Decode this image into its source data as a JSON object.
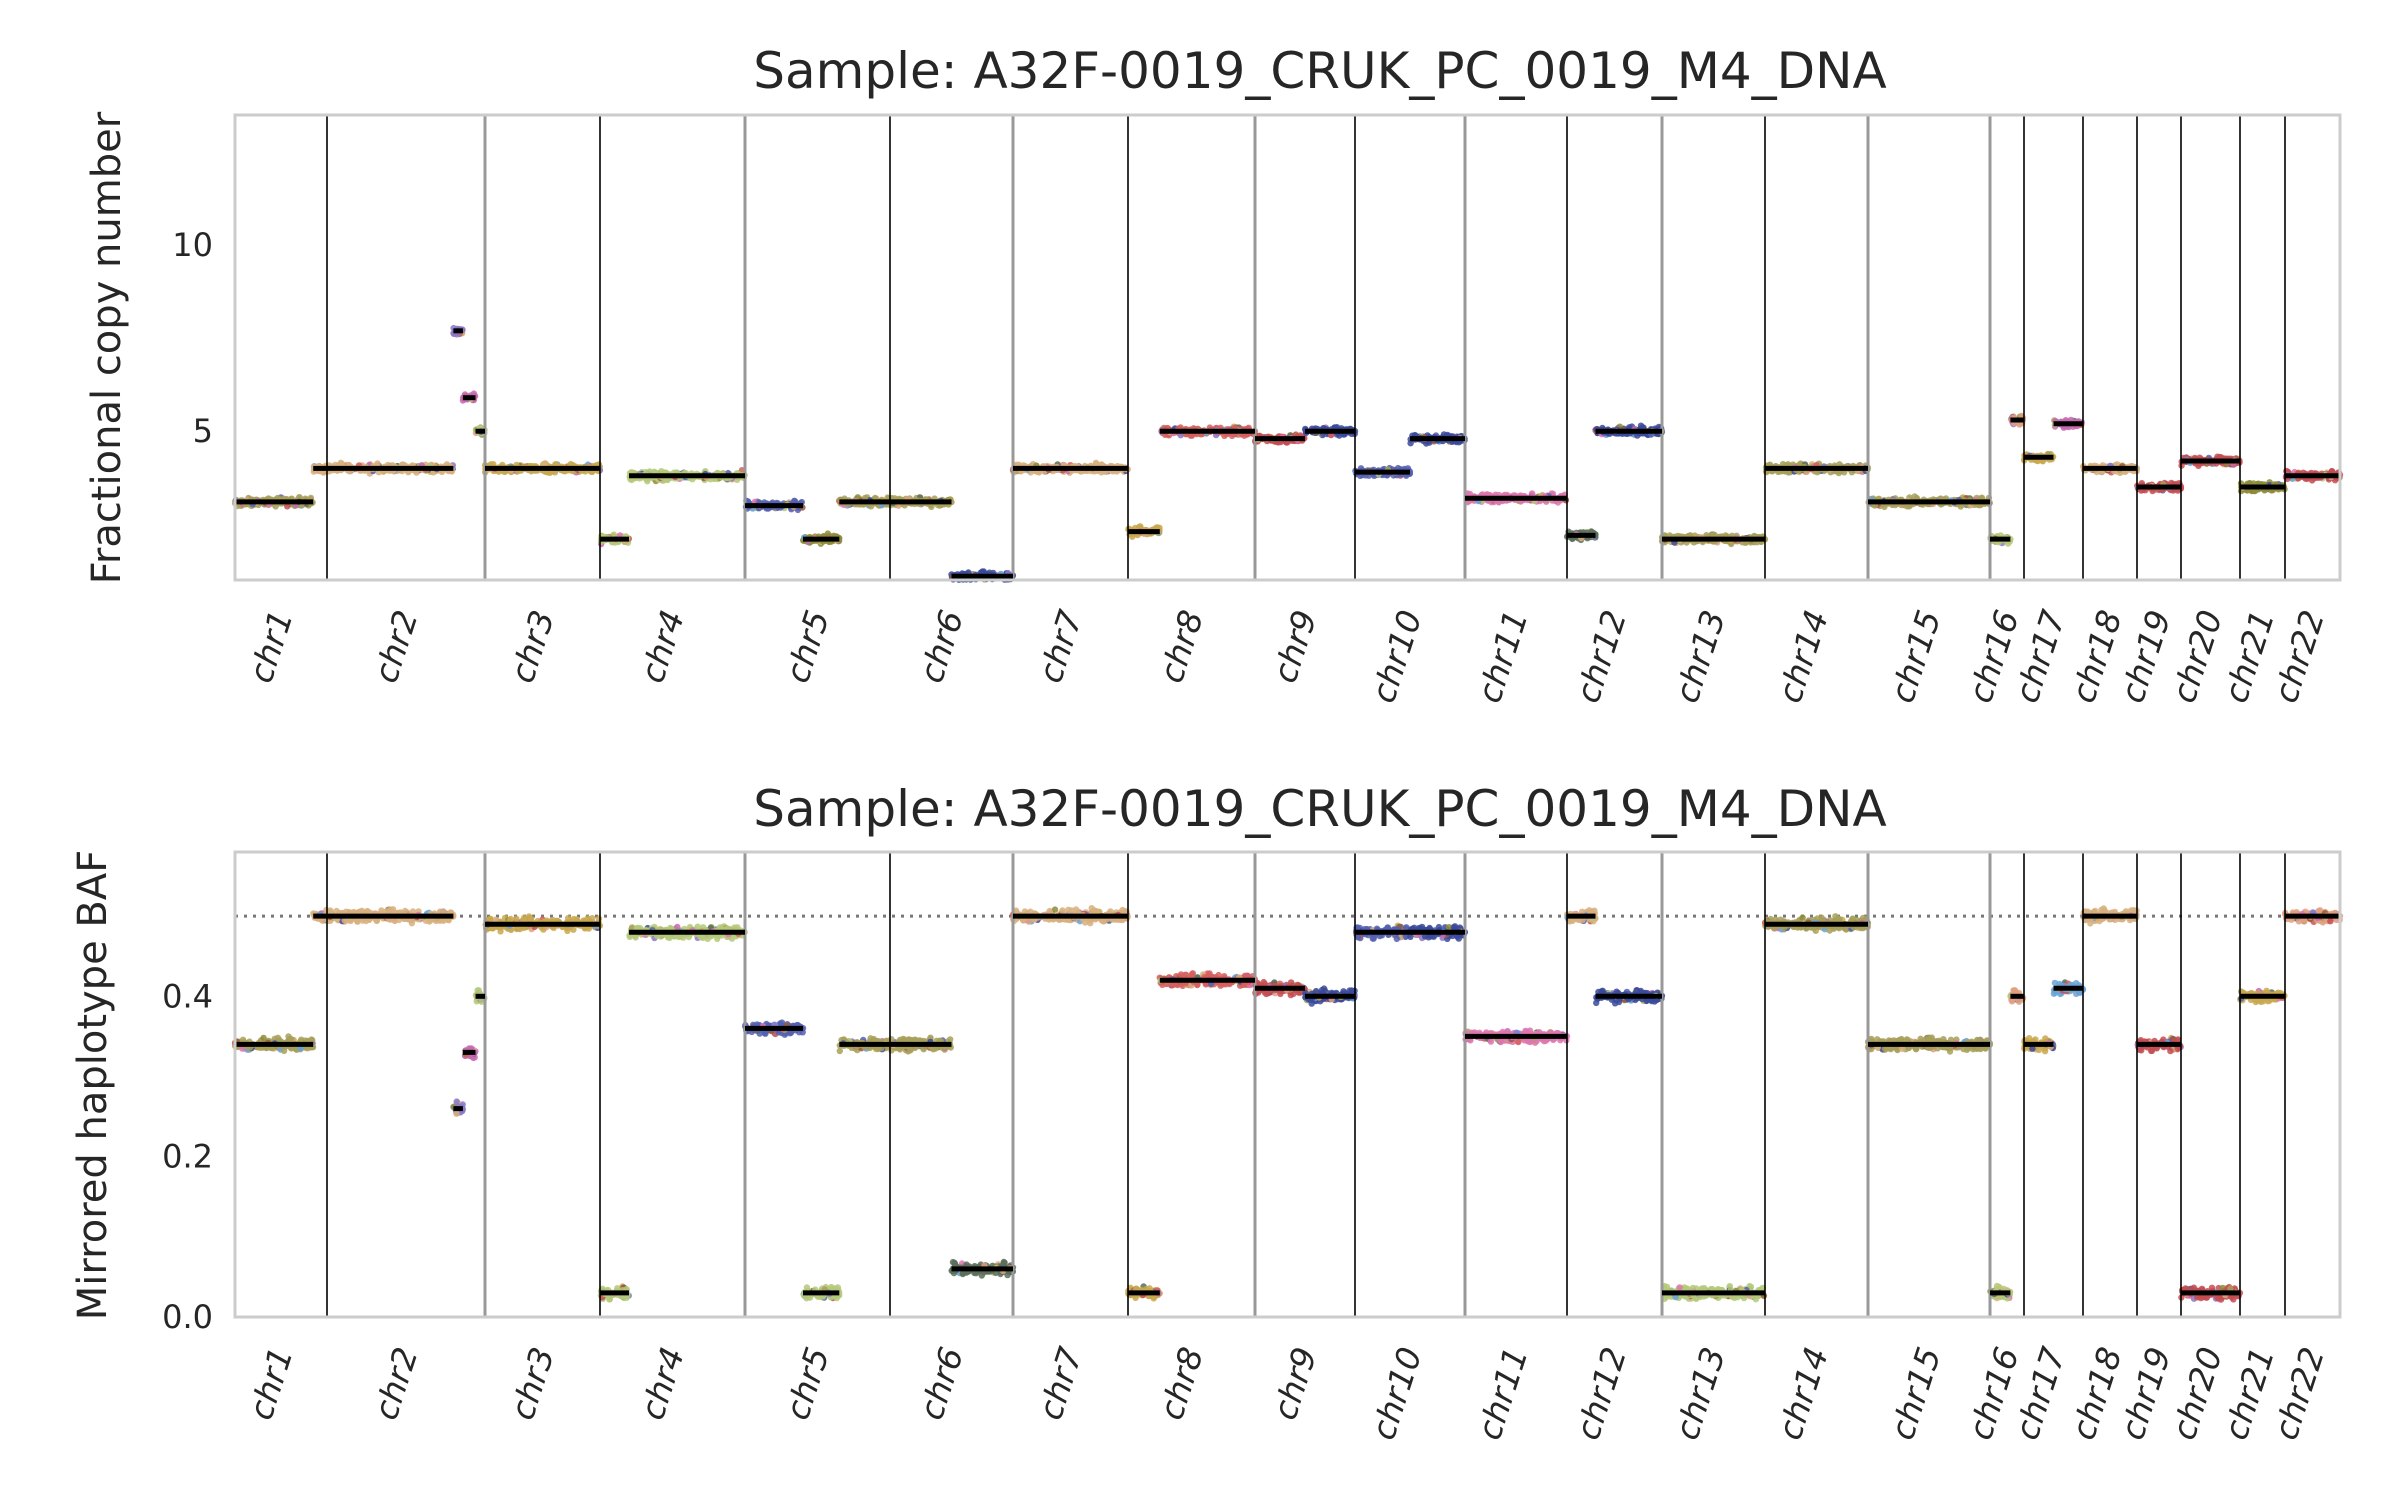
{
  "colors": {
    "segment": "#000000",
    "frame": "#cccccc",
    "boundary_major": "#000000",
    "boundary_minor": "#999999",
    "reference_line": "#777777",
    "clone_palette": [
      "#d8b07f",
      "#c9a84f",
      "#a8a05a",
      "#b5c97a",
      "#8c8c3a",
      "#d65f5f",
      "#c44e52",
      "#de77ae",
      "#c46ab0",
      "#3b4a9a",
      "#5560b0",
      "#8b78c7",
      "#6aa2d8",
      "#5c6f5a",
      "#e0a080",
      "#9a5a3a"
    ]
  },
  "chart_data": [
    {
      "type": "scatter",
      "title": "Sample: A32F-0019_CRUK_PC_0019_M4_DNA",
      "xlabel": "",
      "ylabel": "Fractional copy number",
      "ylim": [
        1,
        13.5
      ],
      "yticks": [
        5,
        10
      ],
      "grid": false,
      "reference_line": null,
      "chromosomes": [
        "chr1",
        "chr2",
        "chr3",
        "chr4",
        "chr5",
        "chr6",
        "chr7",
        "chr8",
        "chr9",
        "chr10",
        "chr11",
        "chr12",
        "chr13",
        "chr14",
        "chr15",
        "chr16",
        "chr17",
        "chr18",
        "chr19",
        "chr20",
        "chr21",
        "chr22"
      ],
      "segments": [
        {
          "chr": "chr1",
          "start": 0.0,
          "end": 0.85,
          "value": 3.1,
          "color": "#a8a05a"
        },
        {
          "chr": "chr1",
          "start": 0.85,
          "end": 1.0,
          "value": 4.0,
          "color": "#d8b07f"
        },
        {
          "chr": "chr2",
          "start": 0.0,
          "end": 0.8,
          "value": 4.0,
          "color": "#d8b07f"
        },
        {
          "chr": "chr2",
          "start": 0.8,
          "end": 0.86,
          "value": 7.7,
          "color": "#8b78c7"
        },
        {
          "chr": "chr2",
          "start": 0.86,
          "end": 0.94,
          "value": 5.9,
          "color": "#c46ab0"
        },
        {
          "chr": "chr2",
          "start": 0.94,
          "end": 1.0,
          "value": 5.0,
          "color": "#b5c97a"
        },
        {
          "chr": "chr3",
          "start": 0.0,
          "end": 1.0,
          "value": 4.0,
          "color": "#c9a84f"
        },
        {
          "chr": "chr4",
          "start": 0.0,
          "end": 0.2,
          "value": 2.1,
          "color": "#b5c97a"
        },
        {
          "chr": "chr4",
          "start": 0.2,
          "end": 1.0,
          "value": 3.8,
          "color": "#b5c97a"
        },
        {
          "chr": "chr5",
          "start": 0.0,
          "end": 0.4,
          "value": 3.0,
          "color": "#5560b0"
        },
        {
          "chr": "chr5",
          "start": 0.4,
          "end": 0.65,
          "value": 2.1,
          "color": "#8c8c3a"
        },
        {
          "chr": "chr5",
          "start": 0.65,
          "end": 1.0,
          "value": 3.1,
          "color": "#a8a05a"
        },
        {
          "chr": "chr6",
          "start": 0.0,
          "end": 0.5,
          "value": 3.1,
          "color": "#a8a05a"
        },
        {
          "chr": "chr6",
          "start": 0.5,
          "end": 1.0,
          "value": 1.1,
          "color": "#3b4a9a"
        },
        {
          "chr": "chr7",
          "start": 0.0,
          "end": 1.0,
          "value": 4.0,
          "color": "#d8b07f"
        },
        {
          "chr": "chr8",
          "start": 0.0,
          "end": 0.25,
          "value": 2.3,
          "color": "#c9a84f"
        },
        {
          "chr": "chr8",
          "start": 0.25,
          "end": 1.0,
          "value": 5.0,
          "color": "#d65f5f"
        },
        {
          "chr": "chr9",
          "start": 0.0,
          "end": 0.5,
          "value": 4.8,
          "color": "#c44e52"
        },
        {
          "chr": "chr9",
          "start": 0.5,
          "end": 1.0,
          "value": 5.0,
          "color": "#3b4a9a"
        },
        {
          "chr": "chr10",
          "start": 0.0,
          "end": 0.5,
          "value": 3.9,
          "color": "#5560b0"
        },
        {
          "chr": "chr10",
          "start": 0.5,
          "end": 1.0,
          "value": 4.8,
          "color": "#3b4a9a"
        },
        {
          "chr": "chr11",
          "start": 0.0,
          "end": 1.0,
          "value": 3.2,
          "color": "#de77ae"
        },
        {
          "chr": "chr12",
          "start": 0.0,
          "end": 0.3,
          "value": 2.2,
          "color": "#5c6f5a"
        },
        {
          "chr": "chr12",
          "start": 0.3,
          "end": 1.0,
          "value": 5.0,
          "color": "#3b4a9a"
        },
        {
          "chr": "chr13",
          "start": 0.0,
          "end": 1.0,
          "value": 2.1,
          "color": "#a8a05a"
        },
        {
          "chr": "chr14",
          "start": 0.0,
          "end": 1.0,
          "value": 4.0,
          "color": "#a8a05a"
        },
        {
          "chr": "chr15",
          "start": 0.0,
          "end": 1.0,
          "value": 3.1,
          "color": "#a8a05a"
        },
        {
          "chr": "chr16",
          "start": 0.0,
          "end": 0.6,
          "value": 2.1,
          "color": "#b5c97a"
        },
        {
          "chr": "chr16",
          "start": 0.6,
          "end": 1.0,
          "value": 5.3,
          "color": "#e0a080"
        },
        {
          "chr": "chr17",
          "start": 0.0,
          "end": 0.5,
          "value": 4.3,
          "color": "#c9a84f"
        },
        {
          "chr": "chr17",
          "start": 0.5,
          "end": 1.0,
          "value": 5.2,
          "color": "#c46ab0"
        },
        {
          "chr": "chr18",
          "start": 0.0,
          "end": 1.0,
          "value": 4.0,
          "color": "#d8b07f"
        },
        {
          "chr": "chr19",
          "start": 0.0,
          "end": 1.0,
          "value": 3.5,
          "color": "#c44e52"
        },
        {
          "chr": "chr20",
          "start": 0.0,
          "end": 1.0,
          "value": 4.2,
          "color": "#c44e52"
        },
        {
          "chr": "chr21",
          "start": 0.0,
          "end": 1.0,
          "value": 3.5,
          "color": "#8c8c3a"
        },
        {
          "chr": "chr22",
          "start": 0.0,
          "end": 1.0,
          "value": 3.8,
          "color": "#c44e52"
        }
      ]
    },
    {
      "type": "scatter",
      "title": "Sample: A32F-0019_CRUK_PC_0019_M4_DNA",
      "xlabel": "",
      "ylabel": "Mirrored haplotype BAF",
      "ylim": [
        0,
        0.58
      ],
      "yticks": [
        0.0,
        0.2,
        0.4
      ],
      "ytick_labels": [
        "0.0",
        "0.2",
        "0.4"
      ],
      "grid": false,
      "reference_line": 0.5,
      "chromosomes": [
        "chr1",
        "chr2",
        "chr3",
        "chr4",
        "chr5",
        "chr6",
        "chr7",
        "chr8",
        "chr9",
        "chr10",
        "chr11",
        "chr12",
        "chr13",
        "chr14",
        "chr15",
        "chr16",
        "chr17",
        "chr18",
        "chr19",
        "chr20",
        "chr21",
        "chr22"
      ],
      "segments": [
        {
          "chr": "chr1",
          "start": 0.0,
          "end": 0.85,
          "value": 0.34,
          "color": "#a8a05a"
        },
        {
          "chr": "chr1",
          "start": 0.85,
          "end": 1.0,
          "value": 0.5,
          "color": "#d8b07f"
        },
        {
          "chr": "chr2",
          "start": 0.0,
          "end": 0.8,
          "value": 0.5,
          "color": "#d8b07f"
        },
        {
          "chr": "chr2",
          "start": 0.8,
          "end": 0.86,
          "value": 0.26,
          "color": "#8b78c7"
        },
        {
          "chr": "chr2",
          "start": 0.86,
          "end": 0.94,
          "value": 0.33,
          "color": "#c46ab0"
        },
        {
          "chr": "chr2",
          "start": 0.94,
          "end": 1.0,
          "value": 0.4,
          "color": "#b5c97a"
        },
        {
          "chr": "chr3",
          "start": 0.0,
          "end": 1.0,
          "value": 0.49,
          "color": "#c9a84f"
        },
        {
          "chr": "chr4",
          "start": 0.0,
          "end": 0.2,
          "value": 0.03,
          "color": "#b5c97a"
        },
        {
          "chr": "chr4",
          "start": 0.2,
          "end": 1.0,
          "value": 0.48,
          "color": "#b5c97a"
        },
        {
          "chr": "chr5",
          "start": 0.0,
          "end": 0.4,
          "value": 0.36,
          "color": "#5560b0"
        },
        {
          "chr": "chr5",
          "start": 0.4,
          "end": 0.65,
          "value": 0.03,
          "color": "#b5c97a"
        },
        {
          "chr": "chr5",
          "start": 0.65,
          "end": 1.0,
          "value": 0.34,
          "color": "#a8a05a"
        },
        {
          "chr": "chr6",
          "start": 0.0,
          "end": 0.5,
          "value": 0.34,
          "color": "#a8a05a"
        },
        {
          "chr": "chr6",
          "start": 0.5,
          "end": 1.0,
          "value": 0.06,
          "color": "#5c6f5a"
        },
        {
          "chr": "chr7",
          "start": 0.0,
          "end": 1.0,
          "value": 0.5,
          "color": "#d8b07f"
        },
        {
          "chr": "chr8",
          "start": 0.0,
          "end": 0.25,
          "value": 0.03,
          "color": "#c9a84f"
        },
        {
          "chr": "chr8",
          "start": 0.25,
          "end": 1.0,
          "value": 0.42,
          "color": "#d65f5f"
        },
        {
          "chr": "chr9",
          "start": 0.0,
          "end": 0.5,
          "value": 0.41,
          "color": "#c44e52"
        },
        {
          "chr": "chr9",
          "start": 0.5,
          "end": 1.0,
          "value": 0.4,
          "color": "#3b4a9a"
        },
        {
          "chr": "chr10",
          "start": 0.0,
          "end": 0.5,
          "value": 0.48,
          "color": "#5560b0"
        },
        {
          "chr": "chr10",
          "start": 0.5,
          "end": 1.0,
          "value": 0.48,
          "color": "#3b4a9a"
        },
        {
          "chr": "chr11",
          "start": 0.0,
          "end": 1.0,
          "value": 0.35,
          "color": "#de77ae"
        },
        {
          "chr": "chr12",
          "start": 0.0,
          "end": 0.3,
          "value": 0.5,
          "color": "#d8b07f"
        },
        {
          "chr": "chr12",
          "start": 0.3,
          "end": 1.0,
          "value": 0.4,
          "color": "#3b4a9a"
        },
        {
          "chr": "chr13",
          "start": 0.0,
          "end": 1.0,
          "value": 0.03,
          "color": "#b5c97a"
        },
        {
          "chr": "chr14",
          "start": 0.0,
          "end": 1.0,
          "value": 0.49,
          "color": "#a8a05a"
        },
        {
          "chr": "chr15",
          "start": 0.0,
          "end": 1.0,
          "value": 0.34,
          "color": "#a8a05a"
        },
        {
          "chr": "chr16",
          "start": 0.0,
          "end": 0.6,
          "value": 0.03,
          "color": "#b5c97a"
        },
        {
          "chr": "chr16",
          "start": 0.6,
          "end": 1.0,
          "value": 0.4,
          "color": "#e0a080"
        },
        {
          "chr": "chr17",
          "start": 0.0,
          "end": 0.5,
          "value": 0.34,
          "color": "#c9a84f"
        },
        {
          "chr": "chr17",
          "start": 0.5,
          "end": 1.0,
          "value": 0.41,
          "color": "#6aa2d8"
        },
        {
          "chr": "chr18",
          "start": 0.0,
          "end": 1.0,
          "value": 0.5,
          "color": "#d8b07f"
        },
        {
          "chr": "chr19",
          "start": 0.0,
          "end": 1.0,
          "value": 0.34,
          "color": "#c44e52"
        },
        {
          "chr": "chr20",
          "start": 0.0,
          "end": 1.0,
          "value": 0.03,
          "color": "#c44e52"
        },
        {
          "chr": "chr21",
          "start": 0.0,
          "end": 1.0,
          "value": 0.4,
          "color": "#c9a84f"
        },
        {
          "chr": "chr22",
          "start": 0.0,
          "end": 1.0,
          "value": 0.5,
          "color": "#e0a080"
        }
      ]
    }
  ]
}
